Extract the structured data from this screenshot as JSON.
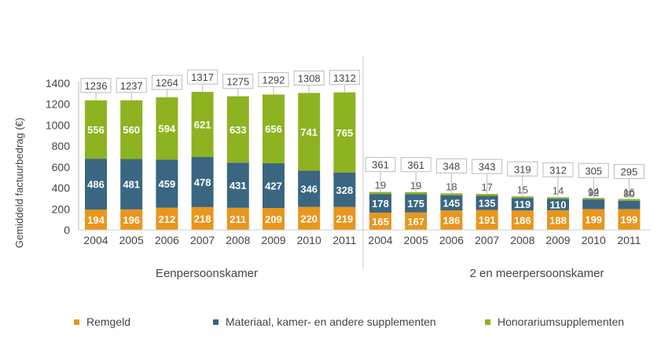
{
  "chart_data": {
    "type": "bar",
    "stacked": true,
    "ylabel": "Gemiddeld factuurbedrag (€)",
    "ylim": [
      0,
      1400
    ],
    "yticks": [
      0,
      200,
      400,
      600,
      800,
      1000,
      1200,
      1400
    ],
    "grid": false,
    "legend_position": "bottom",
    "groups": [
      {
        "name": "Eenpersoonskamer",
        "categories": [
          "2004",
          "2005",
          "2006",
          "2007",
          "2008",
          "2009",
          "2010",
          "2011"
        ],
        "series": [
          {
            "name": "Remgeld",
            "values": [
              194,
              196,
              212,
              218,
              211,
              209,
              220,
              219
            ]
          },
          {
            "name": "Materiaal, kamer- en andere supplementen",
            "values": [
              486,
              481,
              459,
              478,
              431,
              427,
              346,
              328
            ]
          },
          {
            "name": "Honorariumsupplementen",
            "values": [
              556,
              560,
              594,
              621,
              633,
              656,
              741,
              765
            ]
          }
        ],
        "totals": [
          1236,
          1237,
          1264,
          1317,
          1275,
          1292,
          1308,
          1312
        ]
      },
      {
        "name": "2 en meerpersoonskamer",
        "categories": [
          "2004",
          "2005",
          "2006",
          "2007",
          "2008",
          "2009",
          "2010",
          "2011"
        ],
        "series": [
          {
            "name": "Remgeld",
            "values": [
              165,
              167,
              186,
              191,
              186,
              188,
              199,
              199
            ]
          },
          {
            "name": "Materiaal, kamer- en andere supplementen",
            "values": [
              178,
              175,
              145,
              135,
              119,
              110,
              92,
              80
            ]
          },
          {
            "name": "Honorariumsupplementen",
            "values": [
              19,
              19,
              18,
              17,
              15,
              14,
              14,
              16
            ]
          }
        ],
        "totals": [
          361,
          361,
          348,
          343,
          319,
          312,
          305,
          295
        ]
      }
    ],
    "legend": [
      "Remgeld",
      "Materiaal, kamer- en andere supplementen",
      "Honorariumsupplementen"
    ],
    "colors": {
      "Remgeld": "#E8961E",
      "Materiaal, kamer- en andere supplementen": "#3A6682",
      "Honorariumsupplementen": "#8DB321"
    }
  }
}
